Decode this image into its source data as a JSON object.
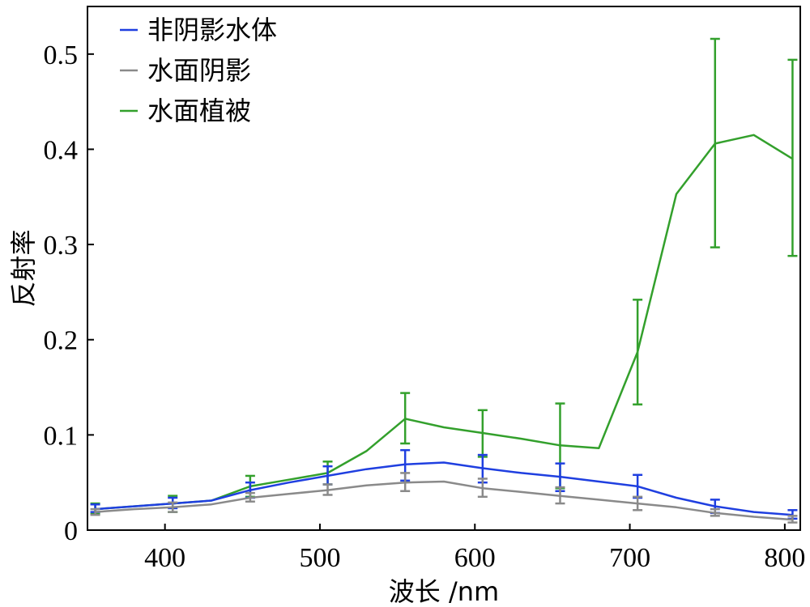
{
  "chart_data": {
    "type": "line",
    "title": "",
    "xlabel": "波长 /nm",
    "ylabel": "反射率",
    "xlim": [
      350,
      810
    ],
    "ylim": [
      0,
      0.55
    ],
    "x_ticks": [
      400,
      500,
      600,
      700,
      800
    ],
    "x_tick_labels": [
      "400",
      "500",
      "600",
      "700",
      "800"
    ],
    "y_ticks": [
      0,
      0.1,
      0.2,
      0.3,
      0.4,
      0.5
    ],
    "y_tick_labels": [
      "0",
      "0.1",
      "0.2",
      "0.3",
      "0.4",
      "0.5"
    ],
    "legend_position": "top-left",
    "grid": false,
    "x": [
      355,
      380,
      405,
      430,
      455,
      480,
      505,
      530,
      555,
      580,
      605,
      630,
      655,
      680,
      705,
      730,
      755,
      780,
      805
    ],
    "series": [
      {
        "name": "非阴影水体",
        "color": "#1f3fe0",
        "values": [
          0.022,
          0.025,
          0.028,
          0.031,
          0.042,
          0.05,
          0.057,
          0.064,
          0.069,
          0.071,
          0.065,
          0.06,
          0.056,
          0.051,
          0.046,
          0.034,
          0.025,
          0.019,
          0.016
        ],
        "error_x": [
          355,
          405,
          455,
          505,
          555,
          605,
          655,
          705,
          755,
          805
        ],
        "error_low": [
          0.019,
          0.023,
          0.034,
          0.048,
          0.052,
          0.05,
          0.041,
          0.034,
          0.018,
          0.012
        ],
        "error_high": [
          0.027,
          0.034,
          0.05,
          0.067,
          0.084,
          0.079,
          0.07,
          0.058,
          0.032,
          0.021
        ]
      },
      {
        "name": "水面阴影",
        "color": "#8a8a8a",
        "values": [
          0.019,
          0.022,
          0.024,
          0.027,
          0.034,
          0.038,
          0.042,
          0.047,
          0.05,
          0.051,
          0.044,
          0.04,
          0.036,
          0.032,
          0.028,
          0.024,
          0.018,
          0.014,
          0.011
        ],
        "error_x": [
          355,
          405,
          455,
          505,
          555,
          605,
          655,
          705,
          755,
          805
        ],
        "error_low": [
          0.016,
          0.019,
          0.03,
          0.037,
          0.041,
          0.035,
          0.028,
          0.021,
          0.015,
          0.008
        ],
        "error_high": [
          0.022,
          0.029,
          0.039,
          0.048,
          0.06,
          0.054,
          0.045,
          0.035,
          0.022,
          0.015
        ]
      },
      {
        "name": "水面植被",
        "color": "#33a02c",
        "values": [
          0.022,
          0.025,
          0.028,
          0.031,
          0.046,
          0.053,
          0.06,
          0.083,
          0.117,
          0.108,
          0.102,
          0.096,
          0.089,
          0.086,
          0.187,
          0.353,
          0.406,
          0.415,
          0.39
        ],
        "error_x": [
          355,
          405,
          455,
          505,
          555,
          605,
          655,
          705,
          755,
          805
        ],
        "error_low": [
          0.017,
          0.019,
          0.035,
          0.048,
          0.091,
          0.077,
          0.044,
          0.132,
          0.297,
          0.288
        ],
        "error_high": [
          0.028,
          0.036,
          0.057,
          0.072,
          0.144,
          0.126,
          0.133,
          0.242,
          0.516,
          0.494
        ]
      }
    ]
  }
}
